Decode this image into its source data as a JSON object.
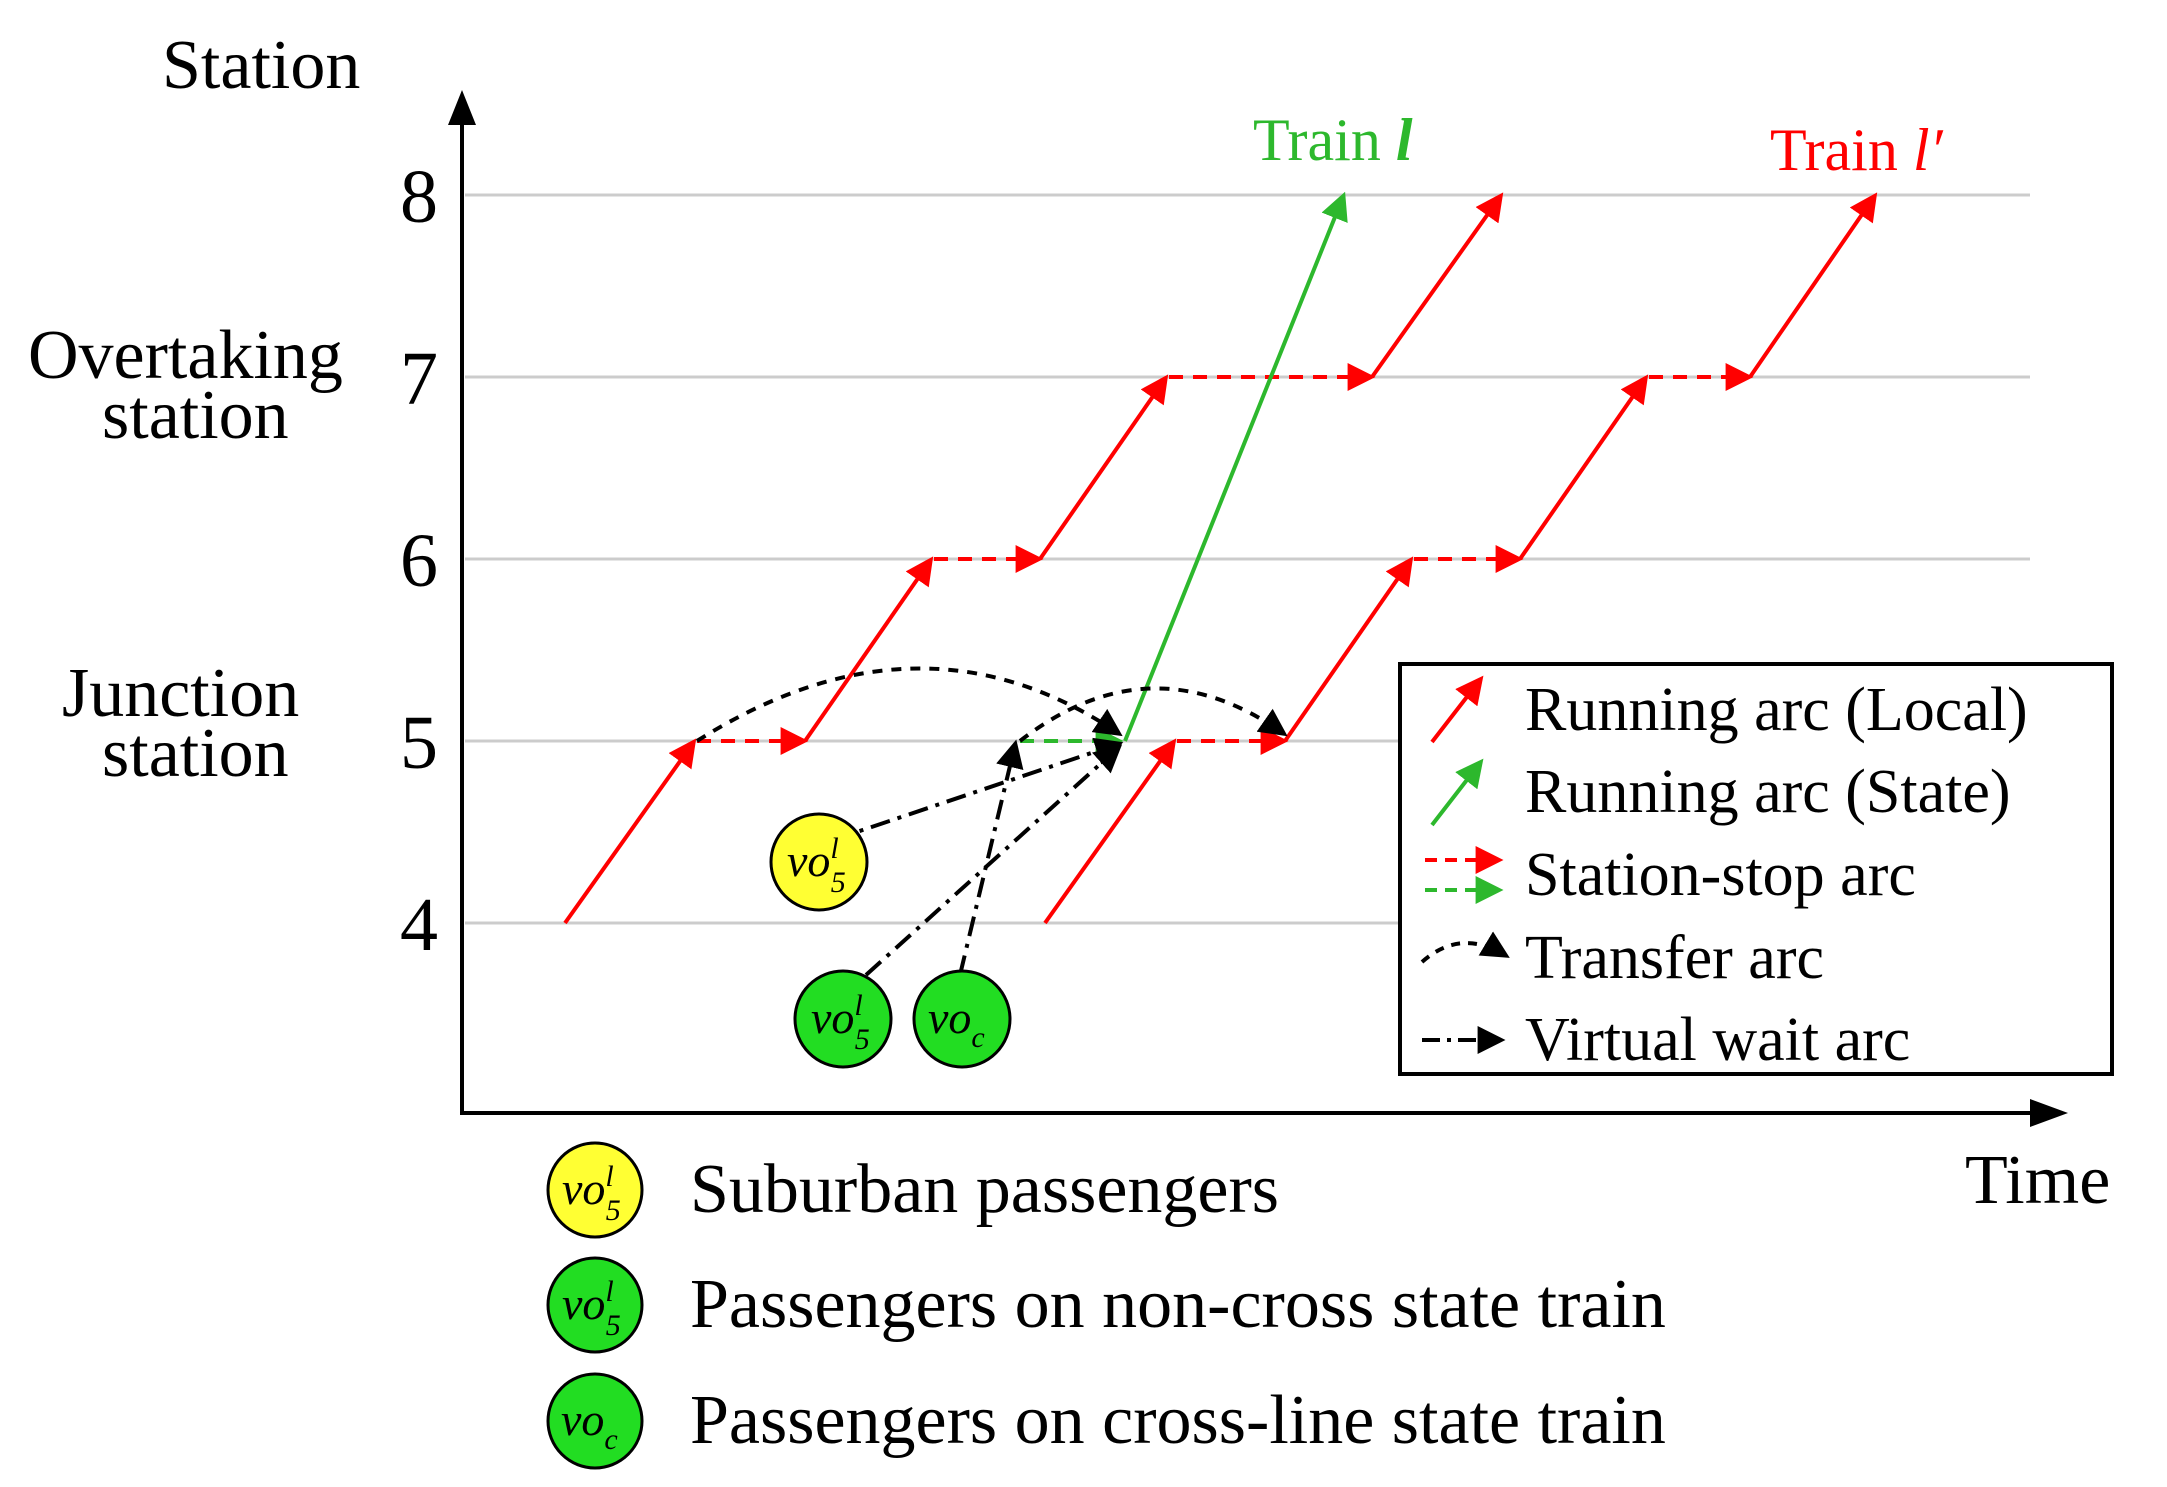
{
  "colors": {
    "local": "#ff0000",
    "state": "#2db82d",
    "transfer": "#000000",
    "grid": "#cccccc",
    "suburban_fill": "#ffff33",
    "state_fill": "#22dd22"
  },
  "axes": {
    "y_title": "Station",
    "x_title": "Time",
    "ticks": [
      "4",
      "5",
      "6",
      "7",
      "8"
    ],
    "junction_label_1": "Junction",
    "junction_label_2": "station",
    "overtaking_label_1": "Overtaking",
    "overtaking_label_2": "station"
  },
  "trains": {
    "state_label_text": "Train ",
    "state_label_sym": "l",
    "local_label_text": "Train ",
    "local_label_sym": "l′"
  },
  "nodes": {
    "main": "vo",
    "sub_5": "5",
    "sup_l": "l",
    "sub_c": "c"
  },
  "legend": {
    "running_local": "Running arc (Local)",
    "running_state": "Running arc (State)",
    "station_stop": "Station-stop arc",
    "transfer": "Transfer arc",
    "virtual_wait": "Virtual wait arc"
  },
  "passenger_legend": {
    "suburban": "Suburban passengers",
    "non_cross": "Passengers on non-cross state train",
    "cross_line": "Passengers on cross-line state train"
  }
}
